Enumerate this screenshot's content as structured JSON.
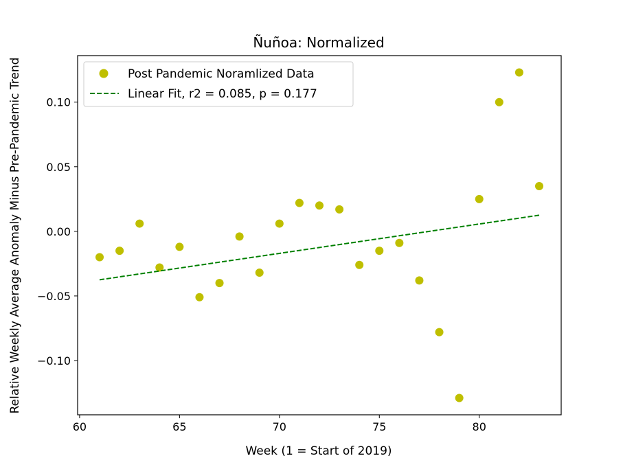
{
  "chart_data": {
    "type": "scatter",
    "title": "Ñuñoa: Normalized",
    "xlabel": "Week (1 = Start of 2019)",
    "ylabel": "Relative Weekly Average Anomaly Minus Pre-Pandemic Trend",
    "xlim": [
      59.9,
      84.1
    ],
    "ylim": [
      -0.142,
      0.136
    ],
    "xticks": [
      60,
      65,
      70,
      75,
      80
    ],
    "yticks": [
      -0.1,
      -0.05,
      0.0,
      0.05,
      0.1
    ],
    "xtick_labels": [
      "60",
      "65",
      "70",
      "75",
      "80"
    ],
    "ytick_labels": [
      "−0.10",
      "−0.05",
      "0.00",
      "0.05",
      "0.10"
    ],
    "grid": false,
    "legend_position": "top-left",
    "series": [
      {
        "name": "Post Pandemic Noramlized Data",
        "kind": "scatter",
        "color": "#bfbf00",
        "x": [
          61,
          62,
          63,
          64,
          65,
          66,
          67,
          68,
          69,
          70,
          71,
          72,
          73,
          74,
          75,
          76,
          77,
          78,
          79,
          80,
          81,
          82,
          83
        ],
        "y": [
          -0.02,
          -0.015,
          0.006,
          -0.028,
          -0.012,
          -0.051,
          -0.04,
          -0.004,
          -0.032,
          0.006,
          0.022,
          0.02,
          0.017,
          -0.026,
          -0.015,
          -0.009,
          -0.038,
          -0.078,
          -0.129,
          0.025,
          0.1,
          0.123,
          0.035
        ]
      },
      {
        "name": "Linear Fit, r2 = 0.085, p = 0.177",
        "kind": "line",
        "style": "dashed",
        "color": "#008000",
        "x": [
          61,
          83
        ],
        "y": [
          -0.0375,
          0.0125
        ]
      }
    ]
  }
}
